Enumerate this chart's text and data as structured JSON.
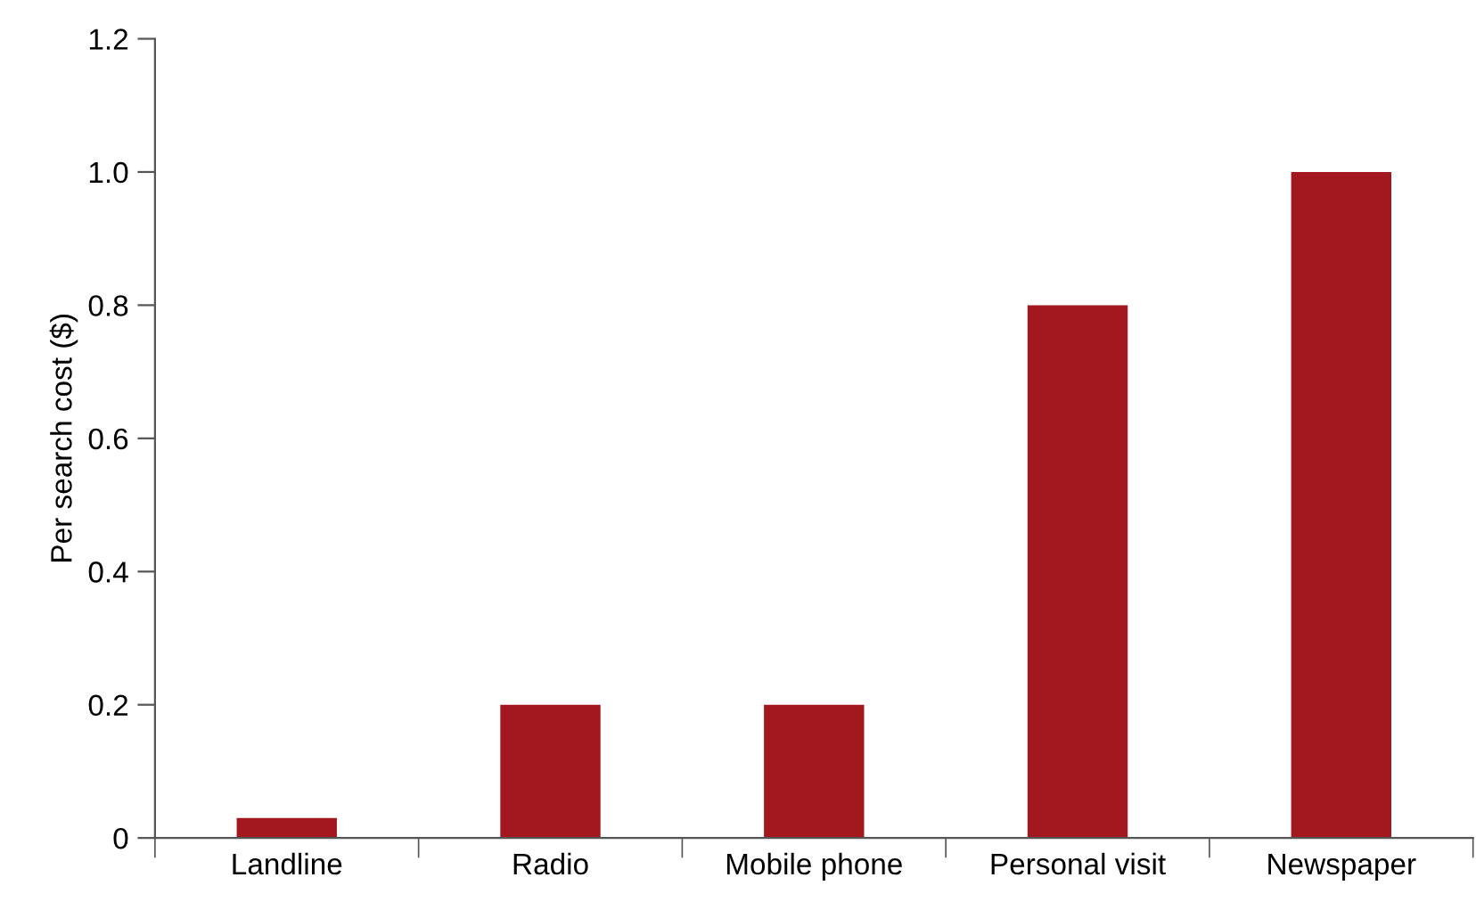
{
  "chart_data": {
    "type": "bar",
    "ylabel": "Per search cost ($)",
    "categories": [
      "Landline",
      "Radio",
      "Mobile phone",
      "Personal visit",
      "Newspaper"
    ],
    "values": [
      0.03,
      0.2,
      0.2,
      0.8,
      1.0
    ],
    "color": "#a3181e",
    "ylim": [
      0,
      1.2
    ],
    "yticks": [
      0,
      {
        "value": 0.2,
        "label": "0.2"
      },
      {
        "value": 0.4,
        "label": "0.4"
      },
      {
        "value": 0.6,
        "label": "0.6"
      },
      {
        "value": 0.8,
        "label": "0.8"
      },
      {
        "value": 1.0,
        "label": "1.0"
      },
      {
        "value": 1.2,
        "label": "1.2"
      }
    ],
    "grid": false
  }
}
